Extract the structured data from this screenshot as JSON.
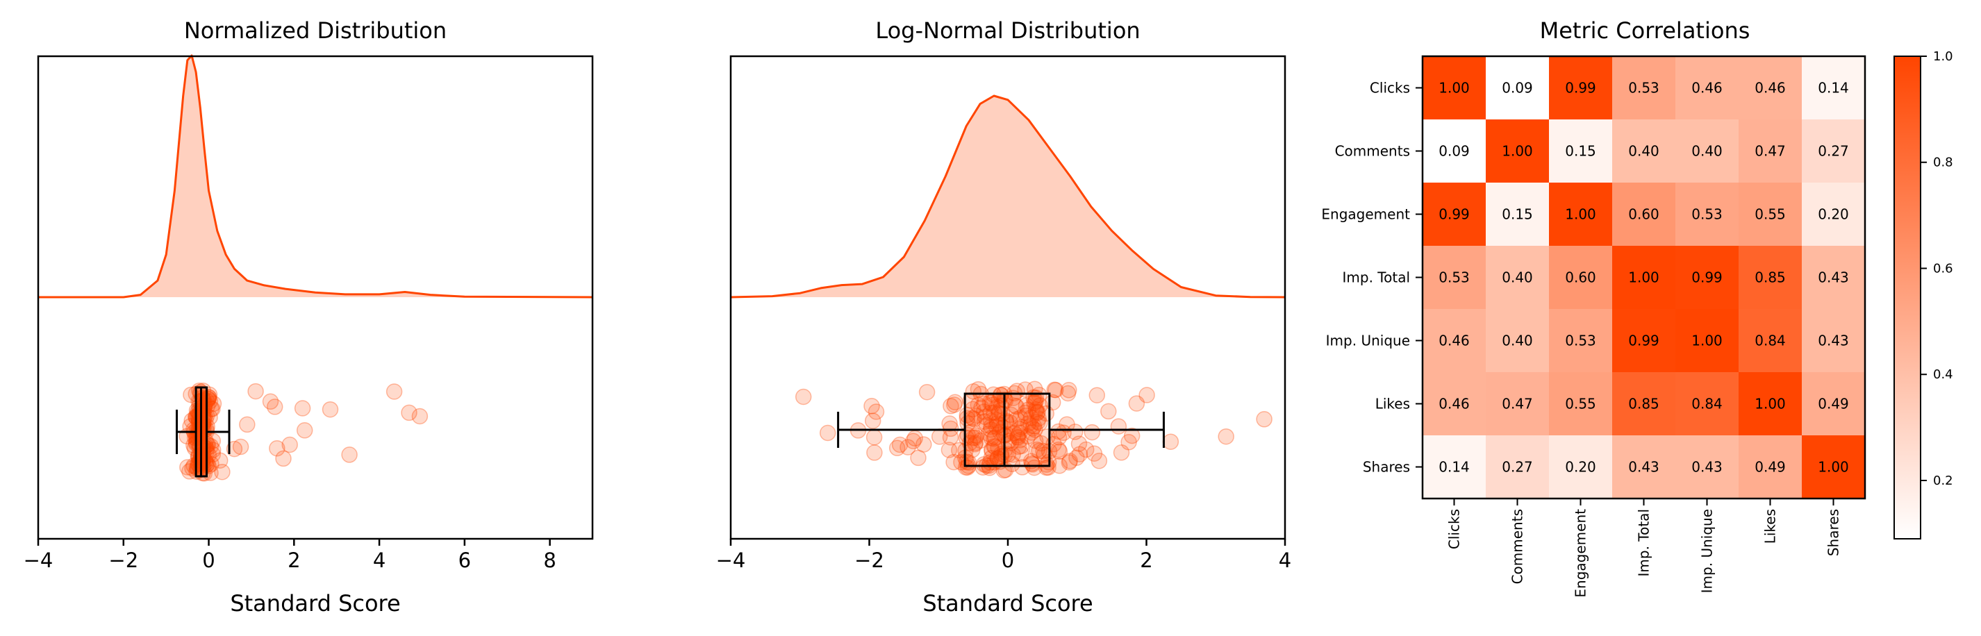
{
  "accent_color": "#FF4500",
  "chart_data": [
    {
      "type": "area",
      "title": "Normalized Distribution",
      "xlabel": "Standard Score",
      "ylabel": "",
      "xlim": [
        -4,
        9
      ],
      "x_ticks": [
        "−4",
        "−2",
        "0",
        "2",
        "4",
        "6",
        "8"
      ],
      "x_tick_values": [
        -4,
        -2,
        0,
        2,
        4,
        6,
        8
      ],
      "grid": false,
      "density": {
        "x": [
          -4,
          -2,
          -1.6,
          -1.2,
          -1.0,
          -0.8,
          -0.6,
          -0.5,
          -0.4,
          -0.3,
          -0.2,
          -0.1,
          0.0,
          0.2,
          0.4,
          0.6,
          0.9,
          1.3,
          1.8,
          2.5,
          3.2,
          4.0,
          4.6,
          5.2,
          6.0,
          9.0
        ],
        "y": [
          0,
          0,
          0.01,
          0.07,
          0.18,
          0.45,
          0.85,
          1.0,
          1.02,
          0.95,
          0.8,
          0.62,
          0.45,
          0.28,
          0.18,
          0.12,
          0.07,
          0.05,
          0.035,
          0.02,
          0.012,
          0.012,
          0.022,
          0.01,
          0.002,
          0
        ]
      },
      "box": {
        "whisker_low": -0.75,
        "q1": -0.3,
        "median": -0.18,
        "q3": -0.05,
        "whisker_high": 0.48
      },
      "outliers": [
        0.6,
        0.75,
        0.9,
        1.1,
        1.45,
        1.55,
        1.6,
        1.75,
        1.9,
        2.2,
        2.25,
        2.85,
        3.3,
        4.35,
        4.7,
        4.95
      ]
    },
    {
      "type": "area",
      "title": "Log-Normal Distribution",
      "xlabel": "Standard Score",
      "ylabel": "",
      "xlim": [
        -4,
        4
      ],
      "x_ticks": [
        "−4",
        "−2",
        "0",
        "2",
        "4"
      ],
      "x_tick_values": [
        -4,
        -2,
        0,
        2,
        4
      ],
      "grid": false,
      "density": {
        "x": [
          -4,
          -3.4,
          -3.0,
          -2.7,
          -2.4,
          -2.1,
          -1.8,
          -1.5,
          -1.2,
          -0.9,
          -0.6,
          -0.4,
          -0.2,
          0.0,
          0.3,
          0.6,
          0.9,
          1.2,
          1.5,
          1.8,
          2.1,
          2.5,
          3.0,
          3.5,
          4.0
        ],
        "y": [
          0,
          0.005,
          0.02,
          0.045,
          0.06,
          0.065,
          0.1,
          0.2,
          0.38,
          0.6,
          0.85,
          0.96,
          1.0,
          0.98,
          0.88,
          0.74,
          0.6,
          0.45,
          0.33,
          0.23,
          0.14,
          0.05,
          0.008,
          0.001,
          0
        ]
      },
      "box": {
        "whisker_low": -2.45,
        "q1": -0.62,
        "median": -0.05,
        "q3": 0.6,
        "whisker_high": 2.25
      },
      "outliers": [
        -2.95,
        -2.6,
        2.35,
        3.15,
        3.7
      ]
    },
    {
      "type": "heatmap",
      "title": "Metric Correlations",
      "categories": [
        "Clicks",
        "Comments",
        "Engagement",
        "Imp. Total",
        "Imp. Unique",
        "Likes",
        "Shares"
      ],
      "values": [
        [
          1.0,
          0.09,
          0.99,
          0.53,
          0.46,
          0.46,
          0.14
        ],
        [
          0.09,
          1.0,
          0.15,
          0.4,
          0.4,
          0.47,
          0.27
        ],
        [
          0.99,
          0.15,
          1.0,
          0.6,
          0.53,
          0.55,
          0.2
        ],
        [
          0.53,
          0.4,
          0.6,
          1.0,
          0.99,
          0.85,
          0.43
        ],
        [
          0.46,
          0.4,
          0.53,
          0.99,
          1.0,
          0.84,
          0.43
        ],
        [
          0.46,
          0.47,
          0.55,
          0.85,
          0.84,
          1.0,
          0.49
        ],
        [
          0.14,
          0.27,
          0.2,
          0.43,
          0.43,
          0.49,
          1.0
        ]
      ],
      "value_labels": [
        [
          "1.00",
          "0.09",
          "0.99",
          "0.53",
          "0.46",
          "0.46",
          "0.14"
        ],
        [
          "0.09",
          "1.00",
          "0.15",
          "0.40",
          "0.40",
          "0.47",
          "0.27"
        ],
        [
          "0.99",
          "0.15",
          "1.00",
          "0.60",
          "0.53",
          "0.55",
          "0.20"
        ],
        [
          "0.53",
          "0.40",
          "0.60",
          "1.00",
          "0.99",
          "0.85",
          "0.43"
        ],
        [
          "0.46",
          "0.40",
          "0.53",
          "0.99",
          "1.00",
          "0.84",
          "0.43"
        ],
        [
          "0.46",
          "0.47",
          "0.55",
          "0.85",
          "0.84",
          "1.00",
          "0.49"
        ],
        [
          "0.14",
          "0.27",
          "0.20",
          "0.43",
          "0.43",
          "0.49",
          "1.00"
        ]
      ],
      "colorbar": {
        "range": [
          0.09,
          1.0
        ],
        "ticks": [
          "0.2",
          "0.4",
          "0.6",
          "0.8",
          "1.0"
        ],
        "tick_values": [
          0.2,
          0.4,
          0.6,
          0.8,
          1.0
        ],
        "colors": [
          "#FFFFFF",
          "#FF4500"
        ]
      }
    }
  ]
}
